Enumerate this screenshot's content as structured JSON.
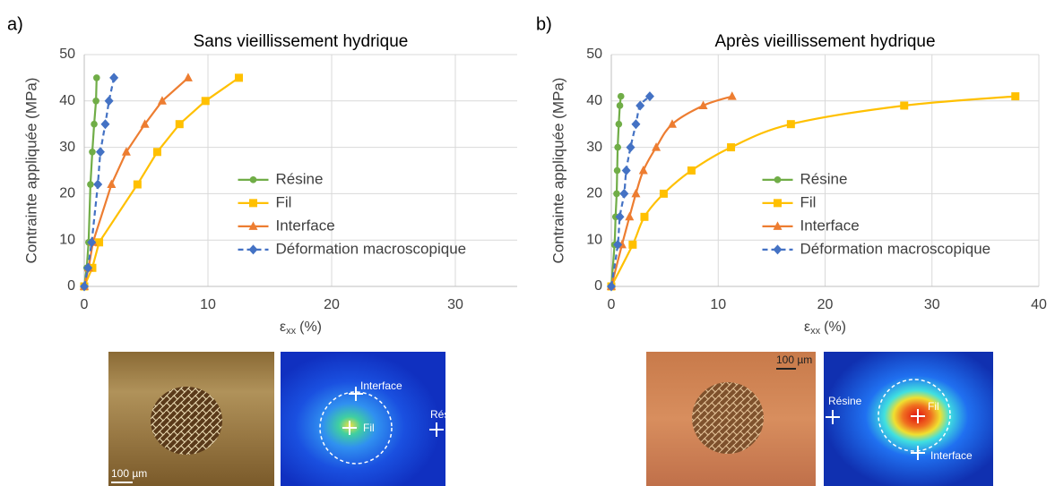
{
  "chart_data": [
    {
      "type": "line",
      "label": "a)",
      "title": "Sans vieillissement hydrique",
      "xlabel": {
        "symbol": "ε",
        "subscript": "xx",
        "unit": "(%)"
      },
      "ylabel": "Contrainte appliquée (MPa)",
      "xlim": [
        0,
        35
      ],
      "xticks": [
        0,
        10,
        20,
        30
      ],
      "ylim": [
        0,
        50
      ],
      "yticks": [
        0,
        10,
        20,
        30,
        40,
        50
      ],
      "grid": true,
      "smooth": false,
      "legend_position": "center",
      "series": [
        {
          "name": "Résine",
          "color": "#70ad47",
          "marker": "circle",
          "dash": false,
          "x": [
            0,
            0.2,
            0.35,
            0.5,
            0.65,
            0.8,
            0.95,
            1.0
          ],
          "values": [
            0,
            4,
            9.5,
            22,
            29,
            35,
            40,
            45
          ]
        },
        {
          "name": "Fil",
          "color": "#ffc000",
          "marker": "square",
          "dash": false,
          "x": [
            0,
            0.65,
            1.2,
            4.3,
            5.9,
            7.7,
            9.8,
            12.5
          ],
          "values": [
            0,
            4,
            9.5,
            22,
            29,
            35,
            40,
            45
          ]
        },
        {
          "name": "Interface",
          "color": "#ed7d31",
          "marker": "triangle",
          "dash": false,
          "x": [
            0,
            0.35,
            0.7,
            2.2,
            3.4,
            4.9,
            6.3,
            8.4
          ],
          "values": [
            0,
            4,
            9.5,
            22,
            29,
            35,
            40,
            45
          ]
        },
        {
          "name": "Déformation macroscopique",
          "color": "#4472c4",
          "marker": "diamond",
          "dash": true,
          "x": [
            0,
            0.3,
            0.6,
            1.1,
            1.3,
            1.7,
            2.0,
            2.4
          ],
          "values": [
            0,
            4,
            9.5,
            22,
            29,
            35,
            40,
            45
          ]
        }
      ]
    },
    {
      "type": "line",
      "label": "b)",
      "title": "Après vieillissement hydrique",
      "xlabel": {
        "symbol": "ε",
        "subscript": "xx",
        "unit": "(%)"
      },
      "ylabel": "Contrainte appliquée (MPa)",
      "xlim": [
        0,
        40
      ],
      "xticks": [
        0,
        10,
        20,
        30,
        40
      ],
      "ylim": [
        0,
        50
      ],
      "yticks": [
        0,
        10,
        20,
        30,
        40,
        50
      ],
      "grid": true,
      "smooth": true,
      "legend_position": "center",
      "series": [
        {
          "name": "Résine",
          "color": "#70ad47",
          "marker": "circle",
          "dash": false,
          "x": [
            0,
            0.3,
            0.4,
            0.5,
            0.55,
            0.6,
            0.7,
            0.8,
            0.9
          ],
          "values": [
            0,
            9,
            15,
            20,
            25,
            30,
            35,
            39,
            41
          ]
        },
        {
          "name": "Fil",
          "color": "#ffc000",
          "marker": "square",
          "dash": false,
          "x": [
            0,
            2.0,
            3.1,
            4.9,
            7.5,
            11.2,
            16.8,
            27.4,
            37.8
          ],
          "values": [
            0,
            9,
            15,
            20,
            25,
            30,
            35,
            39,
            41
          ]
        },
        {
          "name": "Interface",
          "color": "#ed7d31",
          "marker": "triangle",
          "dash": false,
          "x": [
            0,
            1.0,
            1.7,
            2.3,
            3.0,
            4.2,
            5.7,
            8.6,
            11.3
          ],
          "values": [
            0,
            9,
            15,
            20,
            25,
            30,
            35,
            39,
            41
          ]
        },
        {
          "name": "Déformation macroscopique",
          "color": "#4472c4",
          "marker": "diamond",
          "dash": true,
          "x": [
            0,
            0.6,
            0.8,
            1.2,
            1.4,
            1.8,
            2.3,
            2.7,
            3.6
          ],
          "values": [
            0,
            9,
            15,
            20,
            25,
            30,
            35,
            39,
            41
          ]
        }
      ]
    }
  ],
  "figure_images": [
    {
      "scale_bar": "100 µm",
      "map_labels": [
        "Interface",
        "Fil",
        "Résine"
      ]
    },
    {
      "scale_bar": "100 µm",
      "map_labels": [
        "Résine",
        "Fil",
        "Interface"
      ]
    }
  ]
}
